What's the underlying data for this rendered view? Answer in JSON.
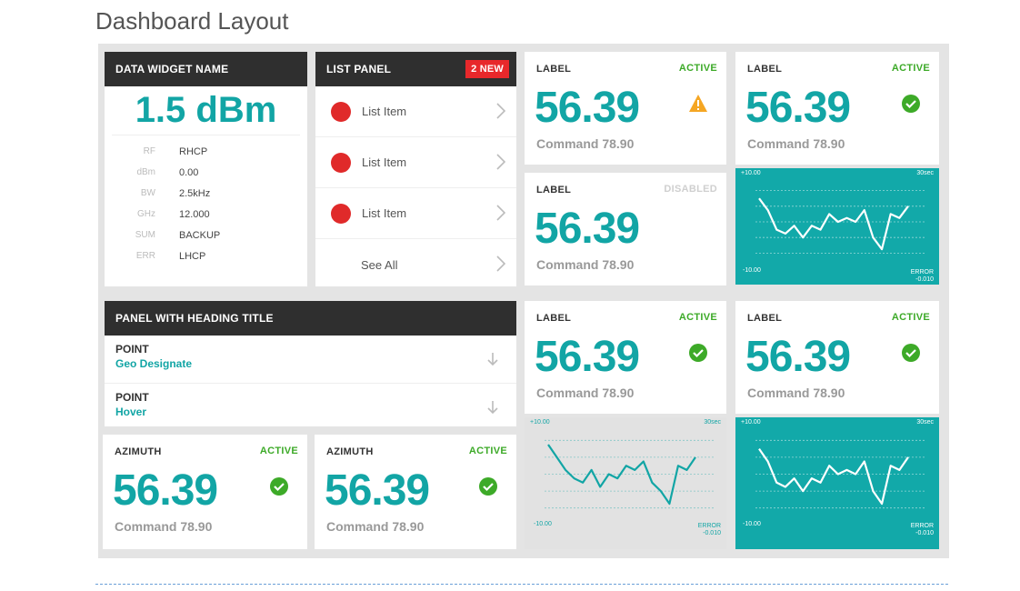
{
  "page": {
    "title": "Dashboard Layout"
  },
  "data_widget": {
    "title": "DATA WIDGET NAME",
    "value": "1.5 dBm",
    "rows": [
      {
        "key": "RF",
        "value": "RHCP"
      },
      {
        "key": "dBm",
        "value": "0.00"
      },
      {
        "key": "BW",
        "value": "2.5kHz"
      },
      {
        "key": "GHz",
        "value": "12.000"
      },
      {
        "key": "SUM",
        "value": "BACKUP"
      },
      {
        "key": "ERR",
        "value": "LHCP"
      }
    ]
  },
  "list_panel": {
    "title": "LIST PANEL",
    "badge": "2 NEW",
    "items": [
      "List Item",
      "List Item",
      "List Item"
    ],
    "see_all": "See All"
  },
  "stats": [
    {
      "label": "LABEL",
      "status": "ACTIVE",
      "value": "56.39",
      "command": "Command 78.90",
      "icon": "warning-icon"
    },
    {
      "label": "LABEL",
      "status": "ACTIVE",
      "value": "56.39",
      "command": "Command 78.90",
      "icon": "check-icon"
    },
    {
      "label": "LABEL",
      "status": "DISABLED",
      "value": "56.39",
      "command": "Command 78.90",
      "icon": ""
    },
    {
      "label": "LABEL",
      "status": "ACTIVE",
      "value": "56.39",
      "command": "Command 78.90",
      "icon": "check-icon"
    },
    {
      "label": "LABEL",
      "status": "ACTIVE",
      "value": "56.39",
      "command": "Command 78.90",
      "icon": "check-icon"
    },
    {
      "label": "AZIMUTH",
      "status": "ACTIVE",
      "value": "56.39",
      "command": "Command 78.90",
      "icon": "check-icon"
    },
    {
      "label": "AZIMUTH",
      "status": "ACTIVE",
      "value": "56.39",
      "command": "Command 78.90",
      "icon": "check-icon"
    }
  ],
  "heading_panel": {
    "title": "PANEL WITH HEADING TITLE",
    "points": [
      {
        "title": "POINT",
        "subtitle": "Geo Designate"
      },
      {
        "title": "POINT",
        "subtitle": "Hover"
      }
    ]
  },
  "colors": {
    "accent": "#12a5a5",
    "active": "#3daa28",
    "alert": "#e02a2a",
    "warning": "#f5a623",
    "dark": "#2f2f2f"
  },
  "chart_data": [
    {
      "type": "line",
      "top_left": "+10.00",
      "top_right": "30sec",
      "bottom_left": "-10.00",
      "bottom_right": "ERROR",
      "bottom_right_sub": "-0.010",
      "ylim": [
        -10,
        10
      ],
      "values": [
        6,
        3,
        -2,
        -3,
        -1,
        -4,
        -1,
        -2,
        2,
        0,
        1,
        0,
        3,
        -4,
        -7,
        2,
        1,
        4
      ]
    },
    {
      "type": "line",
      "top_left": "+10.00",
      "top_right": "30sec",
      "bottom_left": "-10.00",
      "bottom_right": "ERROR",
      "bottom_right_sub": "-0.010",
      "ylim": [
        -10,
        10
      ],
      "values": [
        7,
        4,
        1,
        -1,
        -2,
        1,
        -3,
        0,
        -1,
        2,
        1,
        3,
        -2,
        -4,
        -7,
        2,
        1,
        4
      ]
    },
    {
      "type": "line",
      "top_left": "+10.00",
      "top_right": "30sec",
      "bottom_left": "-10.00",
      "bottom_right": "ERROR",
      "bottom_right_sub": "-0.010",
      "ylim": [
        -10,
        10
      ],
      "values": [
        6,
        3,
        -2,
        -3,
        -1,
        -4,
        -1,
        -2,
        2,
        0,
        1,
        0,
        3,
        -4,
        -7,
        2,
        1,
        4
      ]
    }
  ]
}
